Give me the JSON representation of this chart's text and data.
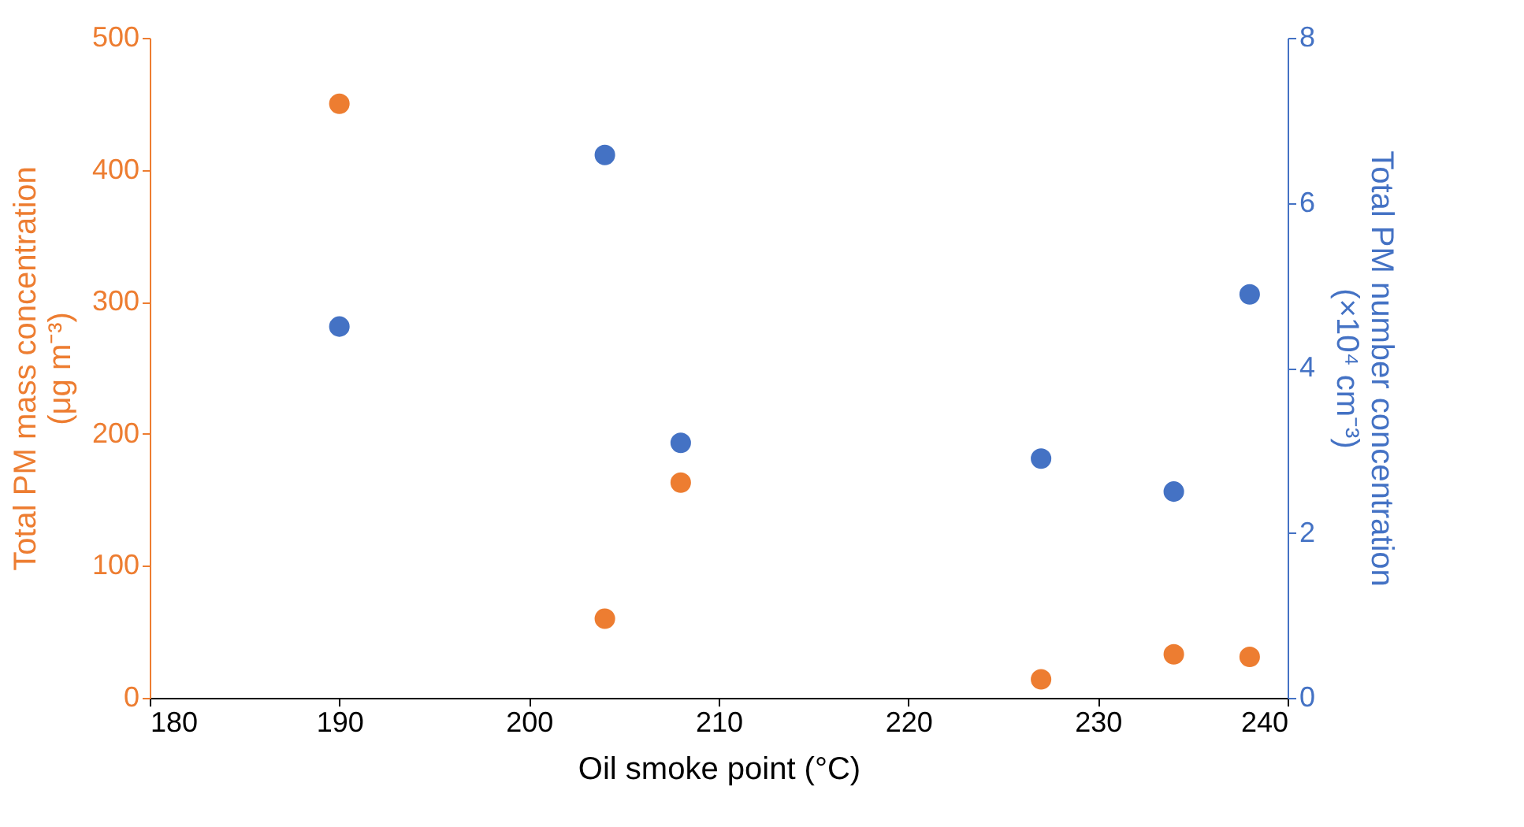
{
  "chart_data": {
    "type": "scatter",
    "xlabel": "Oil smoke point (°C)",
    "ylabel": "Total PM mass concentration\n(μg m⁻³)",
    "y2label": "Total PM number concentration\n(×10⁴ cm⁻³)",
    "x": [
      190,
      204,
      208,
      227,
      234,
      238
    ],
    "series": [
      {
        "color": "#ed7d31",
        "values": [
          450,
          60,
          163,
          14,
          33,
          31
        ]
      },
      {
        "color": "#4472c4",
        "axis": "y2",
        "values": [
          4.5,
          6.58,
          3.09,
          2.9,
          2.5,
          4.89
        ]
      }
    ],
    "xlim": [
      180,
      240
    ],
    "xticks": [
      180,
      190,
      200,
      210,
      220,
      230,
      240
    ],
    "ylim": [
      0,
      500
    ],
    "yticks": [
      0,
      100,
      200,
      300,
      400,
      500
    ],
    "y2lim": [
      0,
      8
    ],
    "y2ticks": [
      0,
      2,
      4,
      6,
      8
    ],
    "grid": false,
    "marker": "circle"
  }
}
